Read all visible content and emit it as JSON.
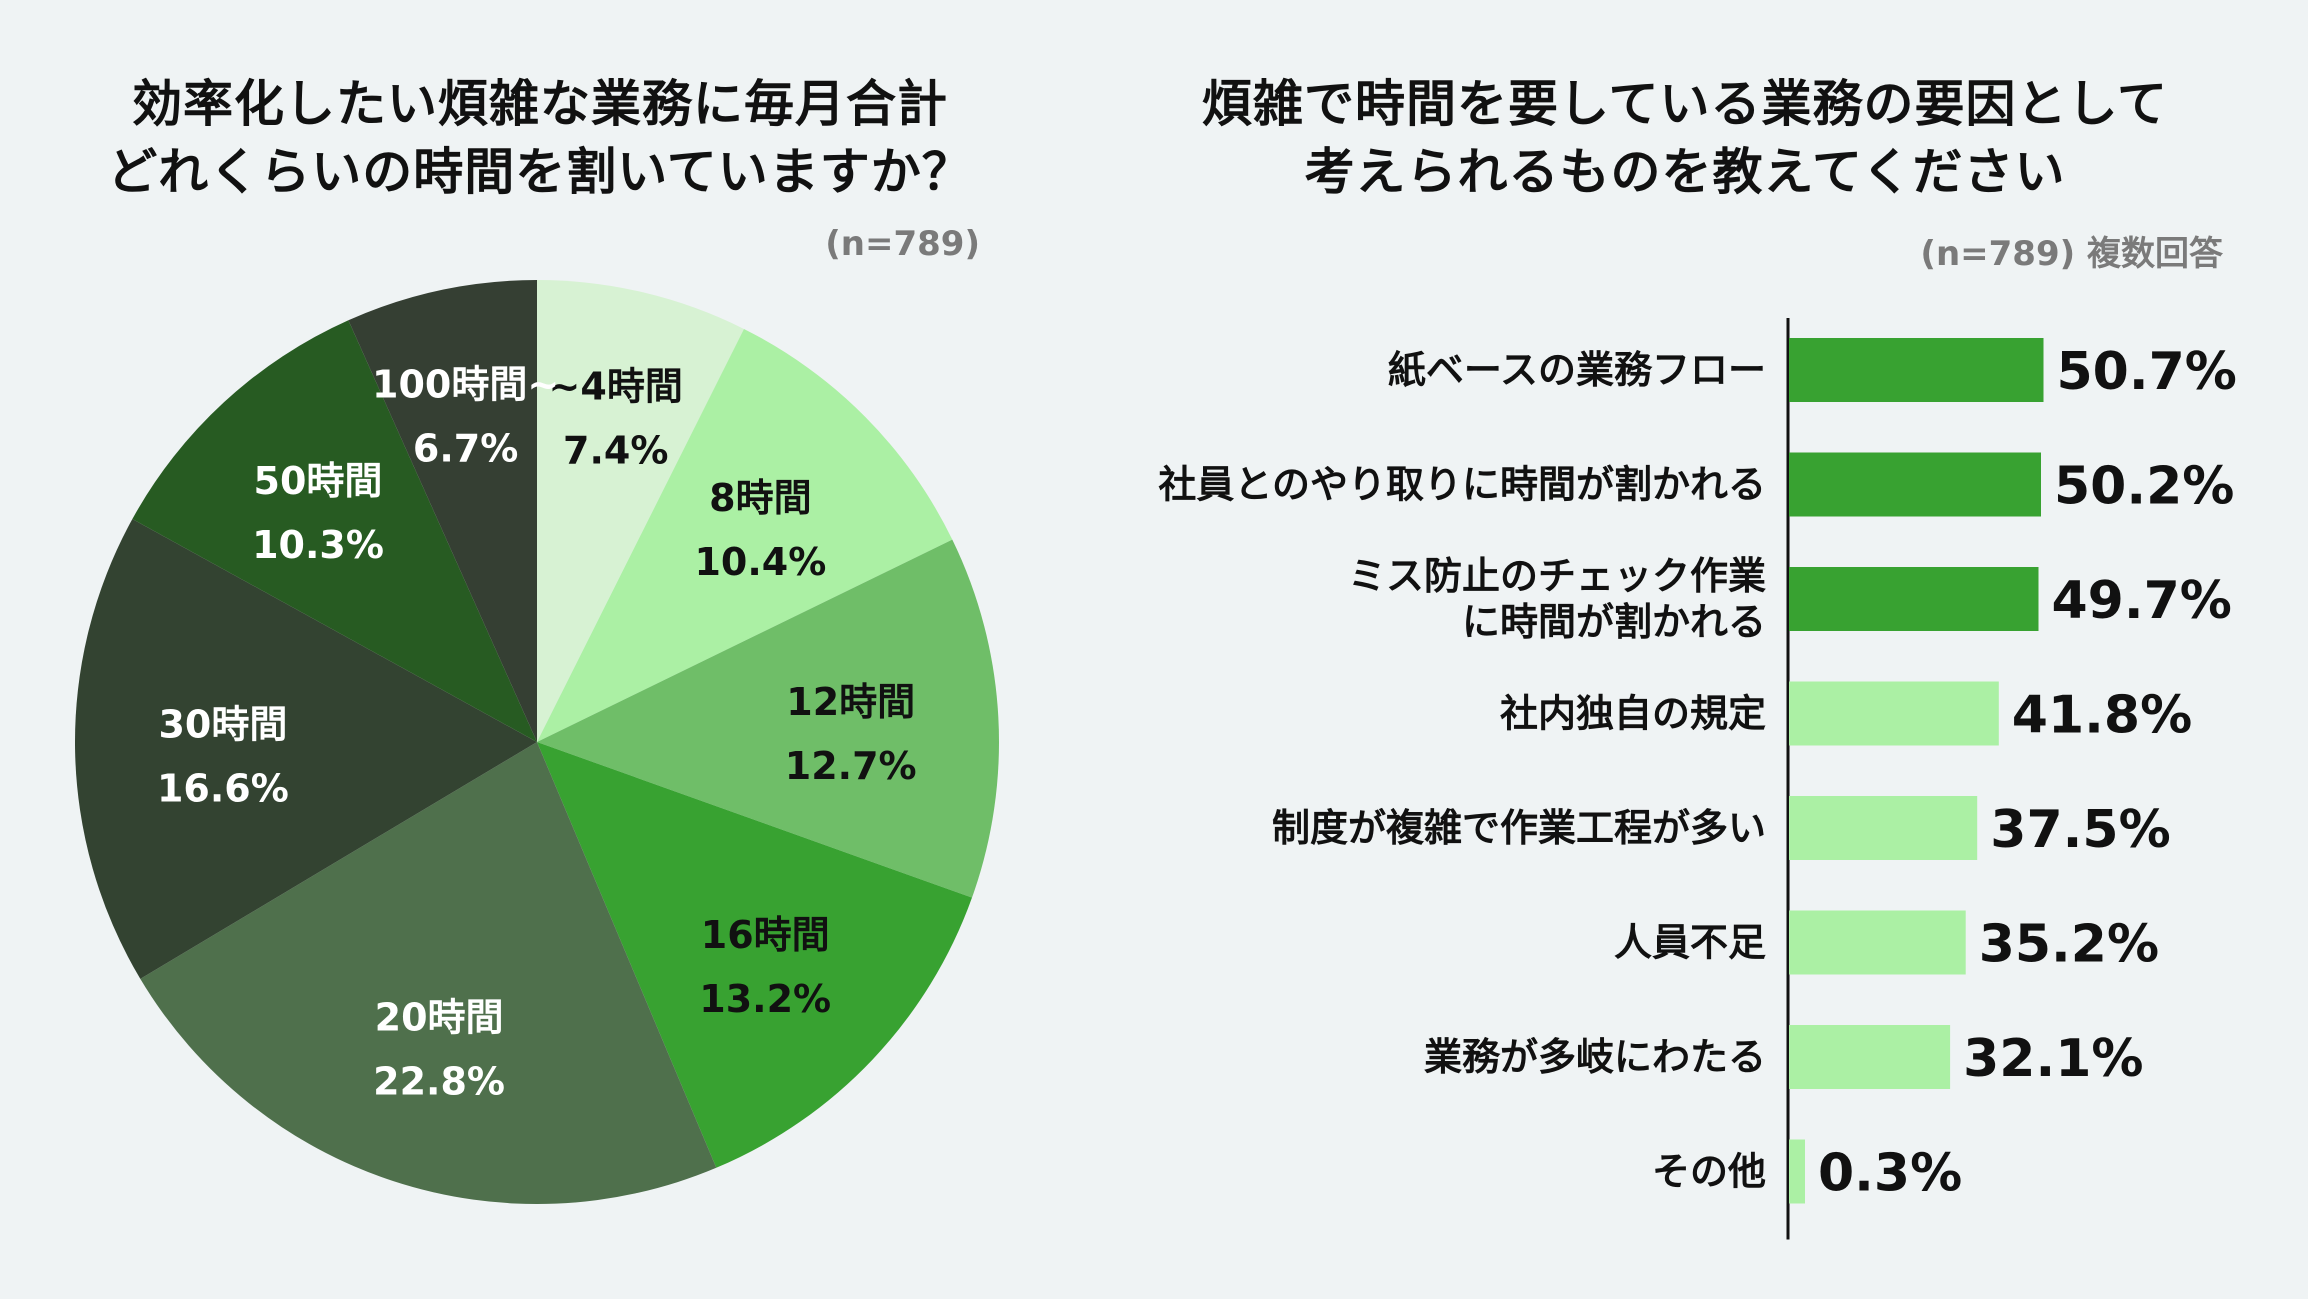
{
  "colors": {
    "background": "#eff3f4",
    "pie_slices": [
      "#d7f2d3",
      "#abf0a4",
      "#6fbe68",
      "#38a231",
      "#4f704c",
      "#334331",
      "#275b22",
      "#353f33"
    ],
    "bar_highlight": "#38a231",
    "bar_normal": "#abf0a4",
    "axis": "#111111"
  },
  "chart_data": [
    {
      "type": "pie",
      "title_lines": [
        "効率化したい煩雑な業務に毎月合計",
        "どれくらいの時間を割いていますか？"
      ],
      "sample_note": "(n=789)",
      "slices": [
        {
          "label": "~4時間",
          "value": 7.4,
          "value_label": "7.4%"
        },
        {
          "label": "8時間",
          "value": 10.4,
          "value_label": "10.4%"
        },
        {
          "label": "12時間",
          "value": 12.7,
          "value_label": "12.7%"
        },
        {
          "label": "16時間",
          "value": 13.2,
          "value_label": "13.2%"
        },
        {
          "label": "20時間",
          "value": 22.8,
          "value_label": "22.8%"
        },
        {
          "label": "30時間",
          "value": 16.6,
          "value_label": "16.6%"
        },
        {
          "label": "50時間",
          "value": 10.3,
          "value_label": "10.3%"
        },
        {
          "label": "100時間~",
          "value": 6.7,
          "value_label": "6.7%"
        }
      ],
      "start_angle_deg": 0,
      "direction": "clockwise"
    },
    {
      "type": "bar",
      "orientation": "horizontal",
      "title_lines": [
        "煩雑で時間を要している業務の要因として",
        "考えられるものを教えてください"
      ],
      "sample_note": "(n=789) 複数回答",
      "categories": [
        [
          "紙ベースの業務フロー"
        ],
        [
          "社員とのやり取りに時間が割かれる"
        ],
        [
          "ミス防止のチェック作業",
          "に時間が割かれる"
        ],
        [
          "社内独自の規定"
        ],
        [
          "制度が複雑で作業工程が多い"
        ],
        [
          "人員不足"
        ],
        [
          "業務が多岐にわたる"
        ],
        [
          "その他"
        ]
      ],
      "values": [
        50.7,
        50.2,
        49.7,
        41.8,
        37.5,
        35.2,
        32.1,
        0.3
      ],
      "value_labels": [
        "50.7%",
        "50.2%",
        "49.7%",
        "41.8%",
        "37.5%",
        "35.2%",
        "32.1%",
        "0.3%"
      ],
      "highlighted": [
        true,
        true,
        true,
        false,
        false,
        false,
        false,
        false
      ],
      "xlim": [
        0,
        100
      ],
      "grid": false
    }
  ]
}
